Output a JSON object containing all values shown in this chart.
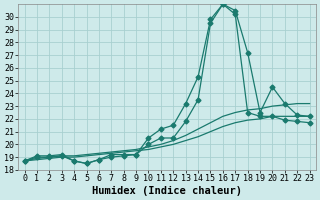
{
  "xlabel": "Humidex (Indice chaleur)",
  "bg_color": "#ceeaea",
  "grid_color": "#a8d0d0",
  "line_color": "#1a7a6e",
  "xlim": [
    -0.5,
    23.5
  ],
  "ylim": [
    18,
    31
  ],
  "xticks": [
    0,
    1,
    2,
    3,
    4,
    5,
    6,
    7,
    8,
    9,
    10,
    11,
    12,
    13,
    14,
    15,
    16,
    17,
    18,
    19,
    20,
    21,
    22,
    23
  ],
  "yticks": [
    18,
    19,
    20,
    21,
    22,
    23,
    24,
    25,
    26,
    27,
    28,
    29,
    30
  ],
  "line1_x": [
    0,
    1,
    2,
    3,
    4,
    5,
    6,
    7,
    8,
    9,
    10,
    11,
    12,
    13,
    14,
    15,
    16,
    17,
    18,
    19,
    20,
    21,
    22,
    23
  ],
  "line1_y": [
    18.7,
    19.1,
    19.1,
    19.2,
    18.7,
    18.5,
    18.8,
    19.2,
    19.2,
    19.2,
    20.5,
    21.2,
    21.5,
    23.2,
    25.3,
    29.8,
    31.0,
    30.5,
    27.2,
    22.5,
    24.5,
    23.2,
    22.3,
    22.2
  ],
  "line2_x": [
    0,
    1,
    2,
    3,
    4,
    5,
    6,
    7,
    8,
    9,
    10,
    11,
    12,
    13,
    14,
    15,
    16,
    17,
    18,
    19,
    20,
    21,
    22,
    23
  ],
  "line2_y": [
    18.7,
    19.0,
    19.0,
    19.1,
    18.7,
    18.5,
    18.8,
    19.0,
    19.1,
    19.2,
    20.0,
    20.5,
    20.5,
    21.8,
    23.5,
    29.5,
    31.0,
    30.2,
    22.5,
    22.2,
    22.2,
    21.9,
    21.8,
    21.7
  ],
  "line3_x": [
    0,
    1,
    2,
    3,
    4,
    5,
    6,
    7,
    8,
    9,
    10,
    11,
    12,
    13,
    14,
    15,
    16,
    17,
    18,
    19,
    20,
    21,
    22,
    23
  ],
  "line3_y": [
    18.7,
    18.9,
    19.0,
    19.1,
    19.1,
    19.2,
    19.3,
    19.4,
    19.5,
    19.6,
    19.8,
    20.0,
    20.3,
    20.7,
    21.2,
    21.7,
    22.2,
    22.5,
    22.7,
    22.8,
    23.0,
    23.1,
    23.2,
    23.2
  ],
  "line4_x": [
    0,
    1,
    2,
    3,
    4,
    5,
    6,
    7,
    8,
    9,
    10,
    11,
    12,
    13,
    14,
    15,
    16,
    17,
    18,
    19,
    20,
    21,
    22,
    23
  ],
  "line4_y": [
    18.7,
    18.8,
    18.9,
    19.0,
    19.0,
    19.1,
    19.2,
    19.3,
    19.4,
    19.5,
    19.6,
    19.8,
    20.0,
    20.3,
    20.6,
    21.0,
    21.4,
    21.7,
    21.9,
    22.0,
    22.2,
    22.2,
    22.2,
    22.2
  ],
  "marker": "D",
  "marker_size": 2.5,
  "linewidth": 0.9,
  "tick_fontsize": 6,
  "xlabel_fontsize": 7.5
}
